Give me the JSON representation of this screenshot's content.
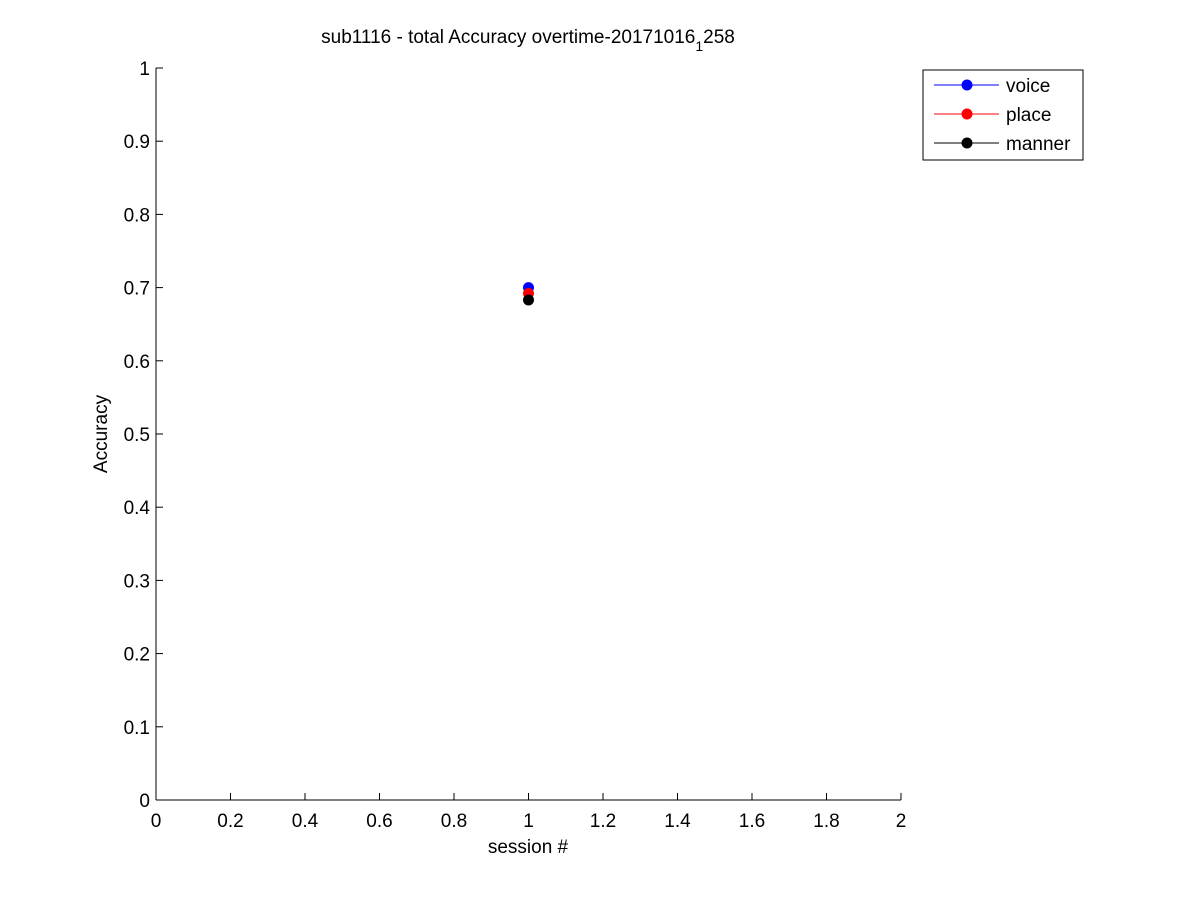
{
  "chart_data": {
    "type": "scatter",
    "title": "sub1116 - total Accuracy overtime-20171016",
    "title_subscript": "1",
    "title_suffix": "258",
    "xlabel": "session #",
    "ylabel": "Accuracy",
    "xlim": [
      0,
      2
    ],
    "ylim": [
      0,
      1
    ],
    "xticks": [
      "0",
      "0.2",
      "0.4",
      "0.6",
      "0.8",
      "1",
      "1.2",
      "1.4",
      "1.6",
      "1.8",
      "2"
    ],
    "yticks": [
      "0",
      "0.1",
      "0.2",
      "0.3",
      "0.4",
      "0.5",
      "0.6",
      "0.7",
      "0.8",
      "0.9",
      "1"
    ],
    "grid": false,
    "legend_position": "top-right outside",
    "series": [
      {
        "name": "voice",
        "color": "#0000ff",
        "x": [
          1
        ],
        "y": [
          0.7
        ]
      },
      {
        "name": "place",
        "color": "#ff0000",
        "x": [
          1
        ],
        "y": [
          0.692
        ]
      },
      {
        "name": "manner",
        "color": "#000000",
        "x": [
          1
        ],
        "y": [
          0.683
        ]
      }
    ]
  }
}
